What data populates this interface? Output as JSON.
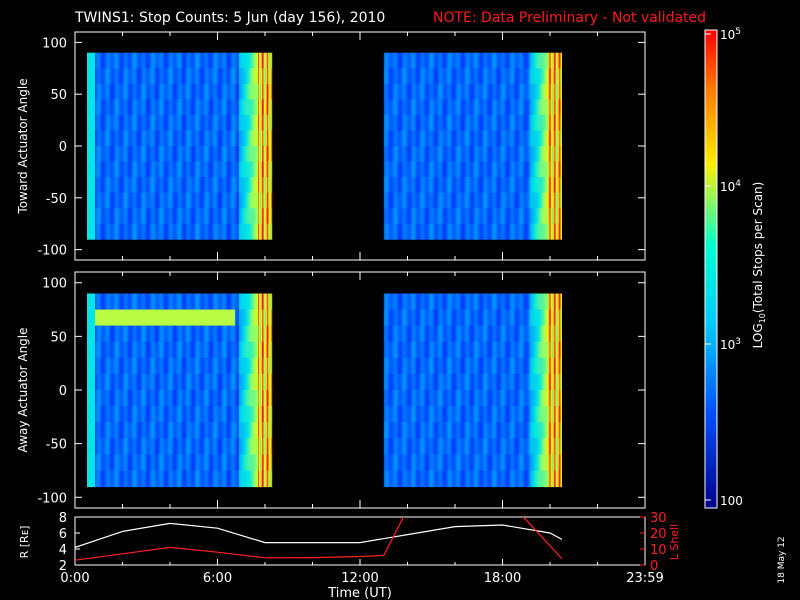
{
  "header": {
    "title": "TWINS1: Stop Counts:  5 Jun (day 156), 2010",
    "note": "NOTE: Data Preliminary - Not validated",
    "note_color": "#ff1a1a"
  },
  "footer": {
    "side_date": "18 May 12"
  },
  "chart_data": [
    {
      "type": "heatmap",
      "panel": "top",
      "ylabel": "Toward Actuator Angle",
      "ylim": [
        -110,
        110
      ],
      "yticks": [
        "100",
        "50",
        "0",
        "-50",
        "-100"
      ],
      "x_range_hours": [
        0,
        24
      ],
      "data_intervals_hours": [
        [
          0.0,
          8.3
        ],
        [
          13.0,
          20.5
        ]
      ],
      "description_colors": "low counts blue, rising to yellow/red near the end of each interval"
    },
    {
      "type": "heatmap",
      "panel": "middle",
      "ylabel": "Away Actuator Angle",
      "ylim": [
        -110,
        110
      ],
      "yticks": [
        "100",
        "50",
        "0",
        "-50",
        "-100"
      ],
      "x_range_hours": [
        0,
        24
      ],
      "data_intervals_hours": [
        [
          0.0,
          8.3
        ],
        [
          13.0,
          20.5
        ]
      ]
    },
    {
      "type": "line",
      "panel": "bottom",
      "ylabel_left": "R [Rᴇ]",
      "ylabel_right": "L Shell",
      "ylim_left": [
        2,
        8
      ],
      "yticks_left": [
        "8",
        "6",
        "4",
        "2"
      ],
      "ylim_right": [
        0,
        30
      ],
      "yticks_right": [
        "30",
        "20",
        "10",
        "0"
      ],
      "right_axis_color": "#ff2020",
      "series": [
        {
          "name": "R",
          "color": "#ffffff",
          "x": [
            0,
            2,
            4,
            6,
            8,
            10,
            12,
            14,
            16,
            18,
            20,
            20.5
          ],
          "y": [
            4.2,
            6.2,
            7.2,
            6.6,
            4.8,
            4.8,
            4.8,
            5.8,
            6.8,
            7.0,
            6.0,
            5.2
          ]
        },
        {
          "name": "L Shell",
          "color": "#ff2020",
          "x": [
            0,
            2,
            4,
            6,
            8,
            10,
            12,
            13,
            14,
            14.2,
            18.5,
            19,
            20.5
          ],
          "y": [
            3,
            7,
            11,
            8,
            4.5,
            4.6,
            5.3,
            6,
            35,
            35,
            35,
            28,
            4
          ]
        }
      ],
      "xticks": [
        "0:00",
        "6:00",
        "12:00",
        "18:00",
        "23:59"
      ],
      "xlabel": "Time (UT)"
    }
  ],
  "colorbar": {
    "label": "LOG10(Total Stops per Scan)",
    "label_parts": [
      "LOG",
      "10",
      "(Total Stops per Scan)"
    ],
    "ticks": [
      {
        "base": "10",
        "exp": "5"
      },
      {
        "base": "10",
        "exp": "4"
      },
      {
        "base": "10",
        "exp": "3"
      },
      {
        "base": "100",
        "exp": ""
      }
    ],
    "colors": [
      "#ff0000",
      "#ff8800",
      "#ffff00",
      "#00ffcc",
      "#00c8ff",
      "#0050ff",
      "#0000aa"
    ]
  }
}
